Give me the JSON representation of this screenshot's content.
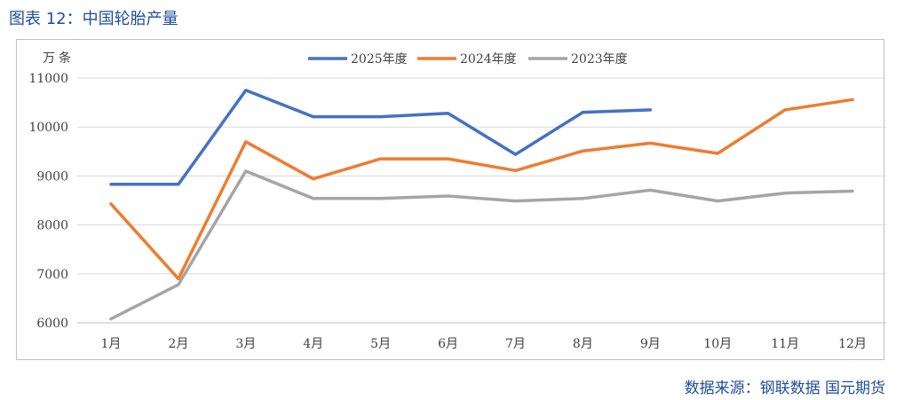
{
  "figure_title": "图表 12：中国轮胎产量",
  "source": "数据来源：钢联数据   国元期货",
  "colors": {
    "title": "#1f4e9c",
    "grid": "#d9d9d9",
    "text": "#404040"
  },
  "chart_data": {
    "type": "line",
    "title": "",
    "unit_label": "万条",
    "xlabel": "",
    "ylabel": "",
    "ylim": [
      6000,
      11000
    ],
    "yticks": [
      6000,
      7000,
      8000,
      9000,
      10000,
      11000
    ],
    "grid": "horizontal",
    "legend": "top-center",
    "categories": [
      "1月",
      "2月",
      "3月",
      "4月",
      "5月",
      "6月",
      "7月",
      "8月",
      "9月",
      "10月",
      "11月",
      "12月"
    ],
    "series": [
      {
        "name": "2025年度",
        "color": "#4472c4",
        "values": [
          8830,
          8830,
          10750,
          10210,
          10210,
          10280,
          9440,
          10300,
          10350,
          null,
          null,
          null
        ]
      },
      {
        "name": "2024年度",
        "color": "#ed7d31",
        "values": [
          8430,
          6900,
          9700,
          8940,
          9350,
          9350,
          9110,
          9510,
          9670,
          9460,
          10350,
          10560
        ]
      },
      {
        "name": "2023年度",
        "color": "#a5a5a5",
        "values": [
          6080,
          6780,
          9100,
          8540,
          8540,
          8590,
          8490,
          8540,
          8710,
          8490,
          8650,
          8690
        ]
      }
    ]
  }
}
